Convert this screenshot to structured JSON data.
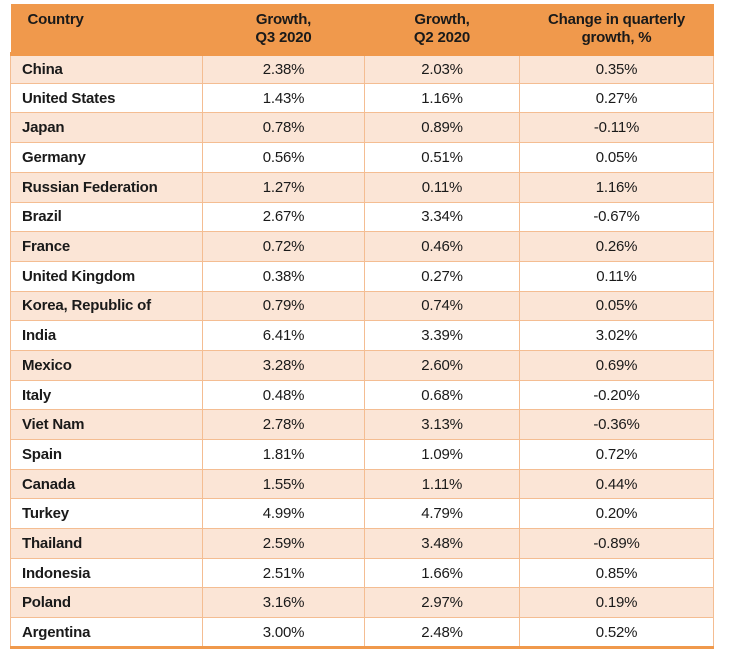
{
  "colors": {
    "header_bg": "#F0994C",
    "band_bg": "#FBE5D6",
    "border_light": "#F4BD92",
    "border_heavy": "#F0994C",
    "text": "#1A1A1A"
  },
  "table": {
    "columns": [
      "Country",
      "Growth,\nQ3 2020",
      "Growth,\nQ2 2020",
      "Change in quarterly\ngrowth, %"
    ],
    "rows": [
      {
        "country": "China",
        "q3": "2.38%",
        "q2": "2.03%",
        "change": "0.35%"
      },
      {
        "country": "United States",
        "q3": "1.43%",
        "q2": "1.16%",
        "change": "0.27%"
      },
      {
        "country": "Japan",
        "q3": "0.78%",
        "q2": "0.89%",
        "change": "-0.11%"
      },
      {
        "country": "Germany",
        "q3": "0.56%",
        "q2": "0.51%",
        "change": "0.05%"
      },
      {
        "country": "Russian Federation",
        "q3": "1.27%",
        "q2": "0.11%",
        "change": "1.16%"
      },
      {
        "country": "Brazil",
        "q3": "2.67%",
        "q2": "3.34%",
        "change": "-0.67%"
      },
      {
        "country": "France",
        "q3": "0.72%",
        "q2": "0.46%",
        "change": "0.26%"
      },
      {
        "country": "United Kingdom",
        "q3": "0.38%",
        "q2": "0.27%",
        "change": "0.11%"
      },
      {
        "country": "Korea, Republic of",
        "q3": "0.79%",
        "q2": "0.74%",
        "change": "0.05%"
      },
      {
        "country": "India",
        "q3": "6.41%",
        "q2": "3.39%",
        "change": "3.02%"
      },
      {
        "country": "Mexico",
        "q3": "3.28%",
        "q2": "2.60%",
        "change": "0.69%"
      },
      {
        "country": "Italy",
        "q3": "0.48%",
        "q2": "0.68%",
        "change": "-0.20%"
      },
      {
        "country": "Viet Nam",
        "q3": "2.78%",
        "q2": "3.13%",
        "change": "-0.36%"
      },
      {
        "country": "Spain",
        "q3": "1.81%",
        "q2": "1.09%",
        "change": "0.72%"
      },
      {
        "country": "Canada",
        "q3": "1.55%",
        "q2": "1.11%",
        "change": "0.44%"
      },
      {
        "country": "Turkey",
        "q3": "4.99%",
        "q2": "4.79%",
        "change": "0.20%"
      },
      {
        "country": "Thailand",
        "q3": "2.59%",
        "q2": "3.48%",
        "change": "-0.89%"
      },
      {
        "country": "Indonesia",
        "q3": "2.51%",
        "q2": "1.66%",
        "change": "0.85%"
      },
      {
        "country": "Poland",
        "q3": "3.16%",
        "q2": "2.97%",
        "change": "0.19%"
      },
      {
        "country": "Argentina",
        "q3": "3.00%",
        "q2": "2.48%",
        "change": "0.52%"
      }
    ]
  }
}
